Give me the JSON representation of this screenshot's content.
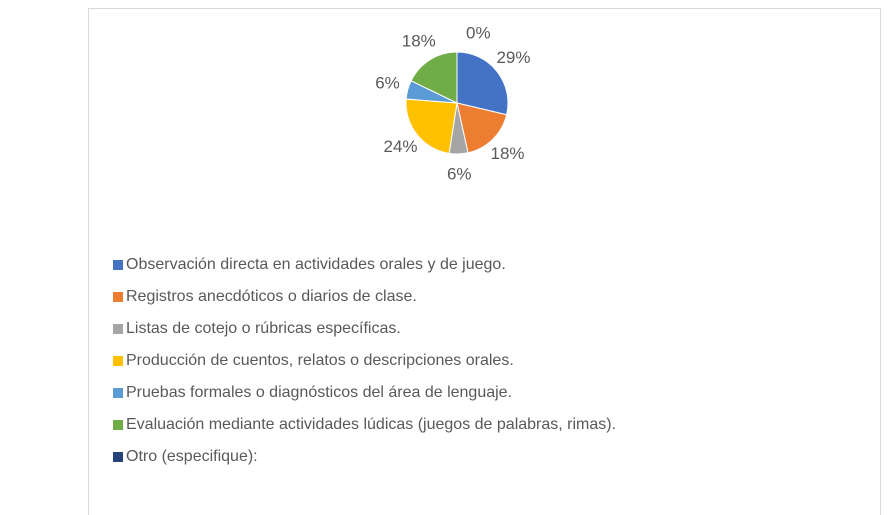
{
  "chart_data": {
    "type": "pie",
    "categories": [
      "Observación directa en actividades orales y de juego.",
      "Registros anecdóticos o diarios de clase.",
      "Listas de cotejo o rúbricas específicas.",
      "Producción de cuentos, relatos o descripciones orales.",
      "Pruebas formales o diagnósticos del área de lenguaje.",
      "Evaluación mediante actividades lúdicas (juegos de palabras, rimas).",
      "Otro (especifique):"
    ],
    "values": [
      29,
      18,
      6,
      24,
      6,
      18,
      0
    ],
    "value_labels": [
      "29%",
      "18%",
      "6%",
      "24%",
      "6%",
      "18%",
      "0%"
    ],
    "colors": [
      "#4472c4",
      "#ed7d31",
      "#a5a5a5",
      "#ffc000",
      "#5b9bd5",
      "#70ad47",
      "#264478"
    ]
  }
}
